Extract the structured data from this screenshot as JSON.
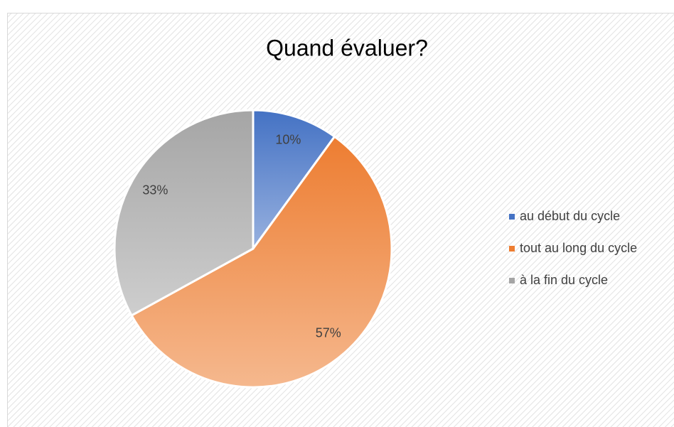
{
  "chart_data": {
    "type": "pie",
    "title": "Quand évaluer?",
    "categories": [
      "au début du cycle",
      "tout au long du cycle",
      "à la fin du cycle"
    ],
    "values": [
      10,
      57,
      33
    ],
    "value_labels": [
      "10%",
      "57%",
      "33%"
    ],
    "colors": [
      "#4472c4",
      "#ed7d31",
      "#a5a5a5"
    ],
    "legend": "right"
  }
}
